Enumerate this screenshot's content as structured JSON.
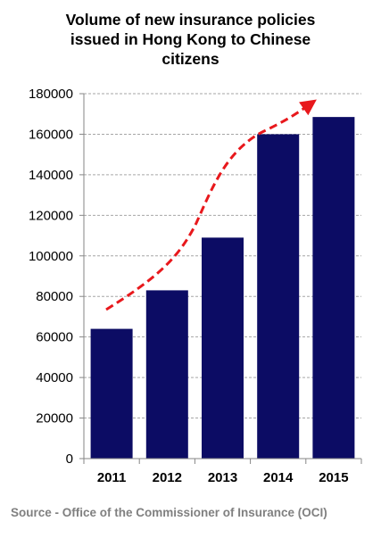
{
  "title_lines": [
    "Volume of new insurance policies",
    "issued in Hong Kong to Chinese",
    "citizens"
  ],
  "source": "Source - Office of the Commissioner of Insurance (OCI)",
  "colors": {
    "bar": "#0c0c64",
    "trend": "#e8181c",
    "grid": "#a6a6a6",
    "source_text": "#808080"
  },
  "chart_data": {
    "type": "bar",
    "title": "Volume of new insurance policies issued in Hong Kong to Chinese citizens",
    "categories": [
      "2011",
      "2012",
      "2013",
      "2014",
      "2015"
    ],
    "values": [
      64000,
      83000,
      109000,
      160000,
      168500
    ],
    "ylim": [
      0,
      180000
    ],
    "yticks": [
      0,
      20000,
      40000,
      60000,
      80000,
      100000,
      120000,
      140000,
      160000,
      180000
    ],
    "ytick_labels": [
      "0",
      "20000",
      "40000",
      "60000",
      "80000",
      "100000",
      "120000",
      "140000",
      "160000",
      "180000"
    ],
    "xlabel": "",
    "ylabel": "",
    "grid": "horizontal dashed",
    "legend": "none",
    "annotations": [
      "red dashed upward trend arrow above bars"
    ]
  }
}
